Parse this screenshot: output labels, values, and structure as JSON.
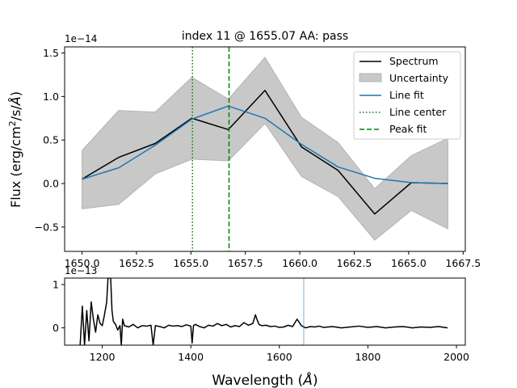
{
  "chart_data": [
    {
      "type": "line",
      "title": "index 11 @ 1655.07 AA: pass",
      "ylabel": "Flux (erg/cm²/s/Å)",
      "ylabel_parts": [
        "Flux (erg/cm",
        "2",
        "/s/",
        "Å",
        ")"
      ],
      "offset_text": "1e−14",
      "xlim": [
        1649.2,
        1667.6
      ],
      "ylim": [
        -0.78,
        1.57
      ],
      "xticks": [
        1650.0,
        1652.5,
        1655.0,
        1657.5,
        1660.0,
        1662.5,
        1665.0,
        1667.5
      ],
      "xtick_labels": [
        "1650.0",
        "1652.5",
        "1655.0",
        "1657.5",
        "1660.0",
        "1662.5",
        "1665.0",
        "1667.5"
      ],
      "yticks": [
        -0.5,
        0.0,
        0.5,
        1.0,
        1.5
      ],
      "ytick_labels": [
        "−0.5",
        "0.0",
        "0.5",
        "1.0",
        "1.5"
      ],
      "grid": false,
      "legend_placement": "top-right",
      "series": [
        {
          "name": "Spectrum",
          "kind": "line",
          "color": "#000000",
          "x": [
            1650.0,
            1651.68,
            1653.36,
            1655.04,
            1656.72,
            1658.4,
            1660.08,
            1661.76,
            1663.44,
            1665.12,
            1666.8
          ],
          "y": [
            0.05,
            0.3,
            0.46,
            0.75,
            0.62,
            1.07,
            0.42,
            0.15,
            -0.35,
            0.01,
            0.0
          ]
        },
        {
          "name": "Uncertainty",
          "kind": "band",
          "color": "#c8c8c8",
          "x": [
            1650.0,
            1651.68,
            1653.36,
            1655.04,
            1656.72,
            1658.4,
            1660.08,
            1661.76,
            1663.44,
            1665.12,
            1666.8
          ],
          "y_low": [
            -0.29,
            -0.24,
            0.11,
            0.28,
            0.26,
            0.69,
            0.08,
            -0.15,
            -0.65,
            -0.31,
            -0.52
          ],
          "y_high": [
            0.38,
            0.84,
            0.82,
            1.22,
            0.97,
            1.45,
            0.76,
            0.47,
            -0.06,
            0.32,
            0.52
          ]
        },
        {
          "name": "Line fit",
          "kind": "line",
          "color": "#1f77b4",
          "x": [
            1650.0,
            1651.68,
            1653.36,
            1655.04,
            1656.72,
            1658.4,
            1660.08,
            1661.76,
            1663.44,
            1665.12,
            1666.8
          ],
          "y": [
            0.05,
            0.18,
            0.44,
            0.74,
            0.89,
            0.75,
            0.45,
            0.19,
            0.06,
            0.01,
            0.0
          ]
        },
        {
          "name": "Line center",
          "kind": "vline",
          "color": "#008000",
          "style": "dotted",
          "x": 1655.07
        },
        {
          "name": "Peak fit",
          "kind": "vline",
          "color": "#008000",
          "style": "dashed",
          "x": 1656.75
        }
      ]
    },
    {
      "type": "line",
      "xlabel": "Wavelength (Å)",
      "xlabel_parts": [
        "Wavelength (",
        "Å",
        ")"
      ],
      "offset_text": "1e−13",
      "xlim": [
        1115,
        2020
      ],
      "ylim": [
        -0.4,
        1.15
      ],
      "xticks": [
        1200,
        1400,
        1600,
        1800,
        2000
      ],
      "xtick_labels": [
        "1200",
        "1400",
        "1600",
        "1800",
        "2000"
      ],
      "yticks": [
        0,
        1
      ],
      "ytick_labels": [
        "0",
        "1"
      ],
      "grid": false,
      "series": [
        {
          "name": "",
          "kind": "line",
          "color": "#000000",
          "x": [
            1150,
            1155,
            1160,
            1165,
            1170,
            1175,
            1180,
            1185,
            1190,
            1195,
            1200,
            1205,
            1210,
            1213,
            1216,
            1219,
            1222,
            1225,
            1230,
            1235,
            1240,
            1243,
            1246,
            1250,
            1260,
            1270,
            1280,
            1290,
            1300,
            1310,
            1315,
            1320,
            1330,
            1340,
            1350,
            1360,
            1370,
            1380,
            1390,
            1400,
            1403,
            1406,
            1410,
            1420,
            1430,
            1440,
            1450,
            1460,
            1470,
            1480,
            1490,
            1500,
            1510,
            1520,
            1530,
            1540,
            1546,
            1550,
            1554,
            1560,
            1570,
            1580,
            1590,
            1600,
            1610,
            1620,
            1630,
            1640,
            1650,
            1655,
            1660,
            1670,
            1680,
            1690,
            1700,
            1720,
            1740,
            1760,
            1780,
            1800,
            1820,
            1840,
            1860,
            1880,
            1900,
            1920,
            1940,
            1960,
            1980
          ],
          "y": [
            -0.4,
            0.5,
            -0.4,
            0.4,
            -0.3,
            0.6,
            0.2,
            -0.1,
            0.3,
            0.1,
            0.05,
            0.3,
            0.6,
            1.15,
            1.15,
            1.15,
            0.4,
            0.15,
            0.08,
            -0.05,
            0.05,
            -0.4,
            0.2,
            0.05,
            0.02,
            0.08,
            0.0,
            0.05,
            0.04,
            0.06,
            -0.4,
            0.05,
            0.03,
            0.0,
            0.06,
            0.04,
            0.05,
            0.03,
            0.07,
            0.04,
            -0.35,
            0.05,
            0.08,
            0.03,
            0.0,
            0.06,
            0.04,
            0.1,
            0.05,
            0.08,
            0.02,
            0.05,
            0.03,
            0.12,
            0.06,
            0.1,
            0.3,
            0.18,
            0.08,
            0.05,
            0.06,
            0.03,
            0.04,
            0.01,
            0.02,
            0.06,
            0.03,
            0.2,
            0.05,
            0.02,
            0.0,
            0.03,
            0.02,
            0.04,
            0.01,
            0.03,
            0.0,
            0.02,
            0.04,
            0.01,
            0.03,
            0.0,
            0.02,
            0.03,
            0.0,
            0.02,
            0.01,
            0.03,
            0.0
          ]
        },
        {
          "name": "",
          "kind": "vline",
          "color": "#1f77b4",
          "style": "solid",
          "x": 1655.07
        }
      ]
    }
  ]
}
